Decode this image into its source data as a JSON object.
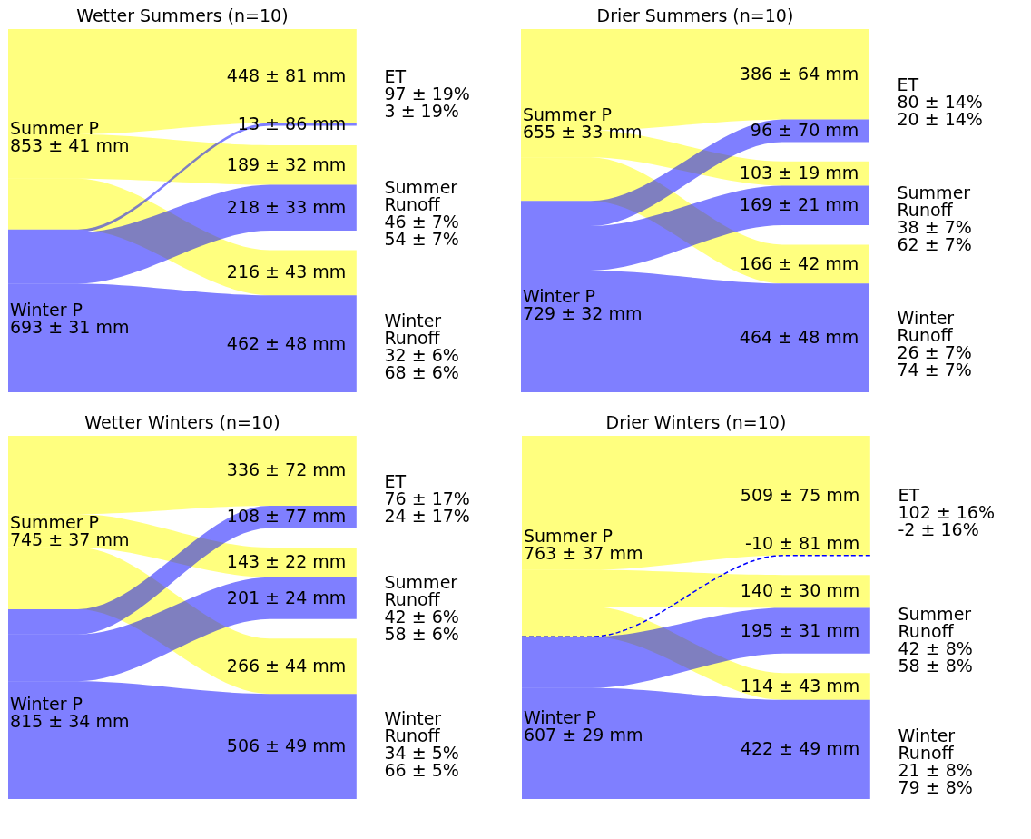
{
  "chart_data": [
    {
      "type": "other",
      "title": "Wetter Summers (n=10)",
      "categories": [
        "ET",
        "Summer Runoff",
        "Winter Runoff"
      ],
      "series": [
        {
          "name": "Summer P",
          "color": "#ffff00",
          "values": [
            448,
            189,
            216
          ],
          "value_labels": [
            "448 ± 81 mm",
            "189 ± 32 mm",
            "216 ± 43 mm"
          ]
        },
        {
          "name": "Winter P",
          "color": "#0000ff",
          "values": [
            13,
            218,
            462
          ],
          "value_labels": [
            "13 ± 86 mm",
            "218 ± 33 mm",
            "462 ± 48 mm"
          ]
        }
      ],
      "totals": [
        "853 ± 41 mm",
        "693 ± 31 mm"
      ],
      "annotations": [
        "97 ± 19%",
        "3 ± 19%",
        "46 ± 7%",
        "54 ± 7%",
        "32 ± 6%",
        "68 ± 6%"
      ]
    },
    {
      "type": "other",
      "title": "Drier Summers (n=10)",
      "categories": [
        "ET",
        "Summer Runoff",
        "Winter Runoff"
      ],
      "series": [
        {
          "name": "Summer P",
          "color": "#ffff00",
          "values": [
            386,
            103,
            166
          ],
          "value_labels": [
            "386 ± 64 mm",
            "103 ± 19 mm",
            "166 ± 42 mm"
          ]
        },
        {
          "name": "Winter P",
          "color": "#0000ff",
          "values": [
            96,
            169,
            464
          ],
          "value_labels": [
            "96 ± 70 mm",
            "169 ± 21 mm",
            "464 ± 48 mm"
          ]
        }
      ],
      "totals": [
        "655 ± 33 mm",
        "729 ± 32 mm"
      ],
      "annotations": [
        "80 ± 14%",
        "20 ± 14%",
        "38 ± 7%",
        "62 ± 7%",
        "26 ± 7%",
        "74 ± 7%"
      ]
    },
    {
      "type": "other",
      "title": "Wetter Winters (n=10)",
      "categories": [
        "ET",
        "Summer Runoff",
        "Winter Runoff"
      ],
      "series": [
        {
          "name": "Summer P",
          "color": "#ffff00",
          "values": [
            336,
            143,
            266
          ],
          "value_labels": [
            "336 ± 72 mm",
            "143 ± 22 mm",
            "266 ± 44 mm"
          ]
        },
        {
          "name": "Winter P",
          "color": "#0000ff",
          "values": [
            108,
            201,
            506
          ],
          "value_labels": [
            "108 ± 77 mm",
            "201 ± 24 mm",
            "506 ± 49 mm"
          ]
        }
      ],
      "totals": [
        "745 ± 37 mm",
        "815 ± 34 mm"
      ],
      "annotations": [
        "76 ± 17%",
        "24 ± 17%",
        "42 ± 6%",
        "58 ± 6%",
        "34 ± 5%",
        "66 ± 5%"
      ]
    },
    {
      "type": "other",
      "title": "Drier Winters (n=10)",
      "categories": [
        "ET",
        "Summer Runoff",
        "Winter Runoff"
      ],
      "series": [
        {
          "name": "Summer P",
          "color": "#ffff00",
          "values": [
            509,
            140,
            114
          ],
          "value_labels": [
            "509 ± 75 mm",
            "140 ± 30 mm",
            "114 ± 43 mm"
          ]
        },
        {
          "name": "Winter P",
          "color": "#0000ff",
          "values": [
            -10,
            195,
            422
          ],
          "value_labels": [
            "-10 ± 81 mm",
            "195 ± 31 mm",
            "422 ± 49 mm"
          ]
        }
      ],
      "totals": [
        "763 ± 37 mm",
        "607 ± 29 mm"
      ],
      "annotations": [
        "102 ± 16%",
        "-2 ± 16%",
        "42 ± 8%",
        "58 ± 8%",
        "21 ± 8%",
        "79 ± 8%"
      ]
    }
  ]
}
